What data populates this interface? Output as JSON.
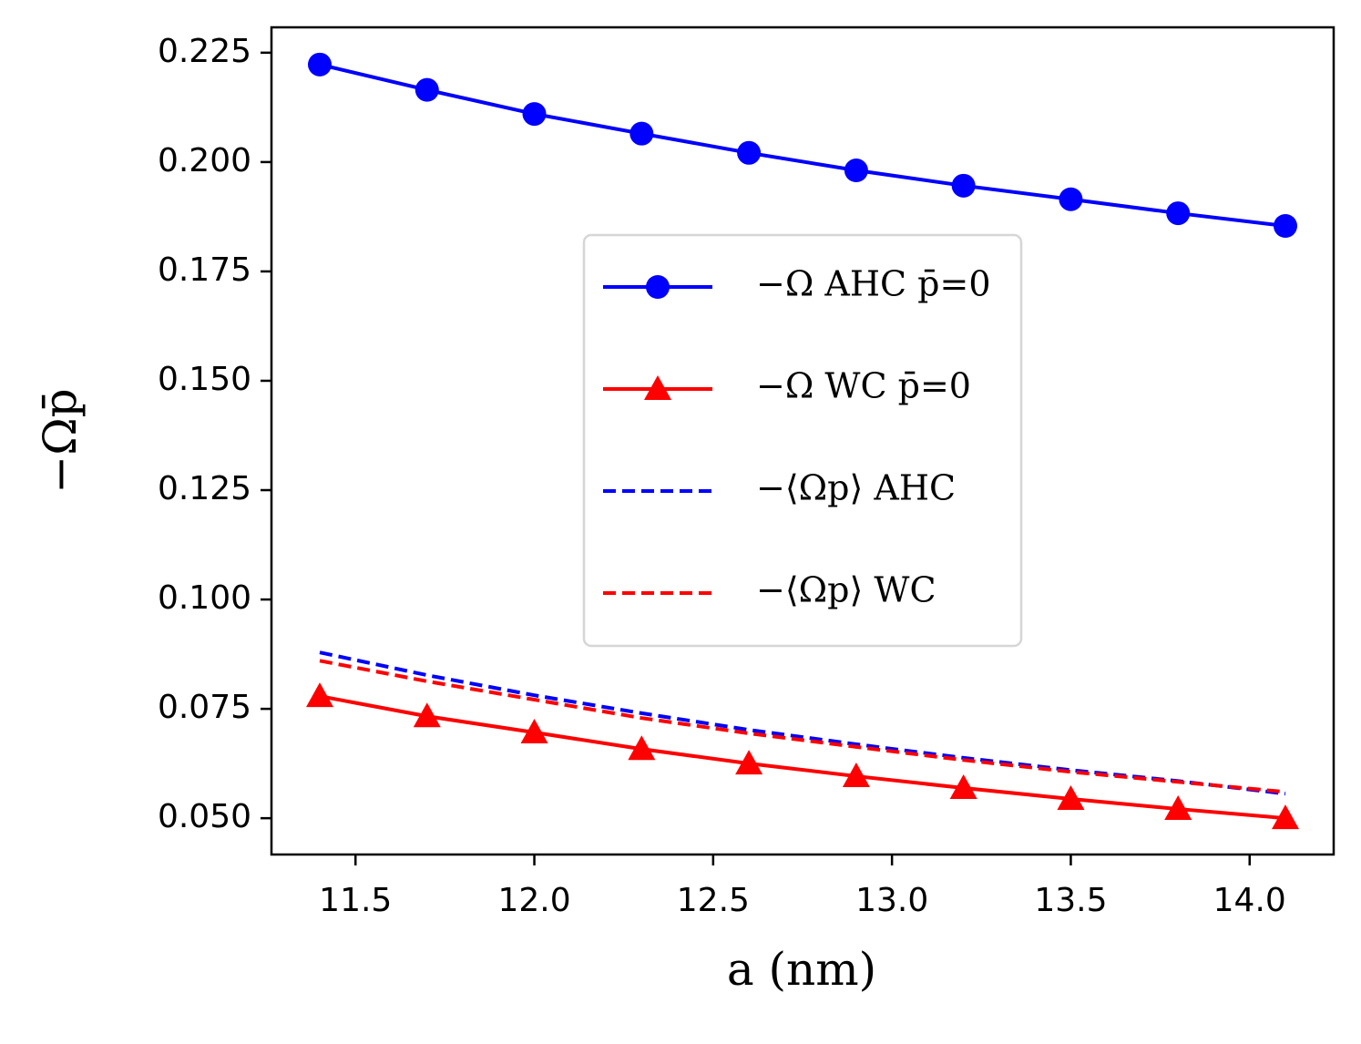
{
  "chart_data": {
    "type": "line",
    "x_label": "a (nm)",
    "y_label": "−Ωp̄",
    "x": [
      11.4,
      11.7,
      12.0,
      12.3,
      12.6,
      12.9,
      13.2,
      13.5,
      13.8,
      14.1
    ],
    "series": [
      {
        "name": "−Ω AHC p̄=0",
        "color": "#0000ff",
        "marker": "circle",
        "dash": false,
        "values": [
          0.2223,
          0.2165,
          0.211,
          0.2065,
          0.2021,
          0.1981,
          0.1946,
          0.1915,
          0.1883,
          0.1854
        ]
      },
      {
        "name": "−Ω WC p̄=0",
        "color": "#ff0000",
        "marker": "triangle",
        "dash": false,
        "values": [
          0.0779,
          0.0733,
          0.0696,
          0.0658,
          0.0625,
          0.0596,
          0.0569,
          0.0544,
          0.0521,
          0.05
        ]
      },
      {
        "name": "−⟨Ωp⟩ AHC",
        "color": "#0000ff",
        "marker": null,
        "dash": true,
        "values": [
          0.0879,
          0.0827,
          0.0781,
          0.074,
          0.0702,
          0.0669,
          0.0638,
          0.061,
          0.0585,
          0.0556
        ]
      },
      {
        "name": "−⟨Ωp⟩ WC",
        "color": "#ff0000",
        "marker": null,
        "dash": true,
        "values": [
          0.086,
          0.0813,
          0.0771,
          0.0729,
          0.0694,
          0.0663,
          0.0633,
          0.0606,
          0.0583,
          0.056
        ]
      }
    ],
    "xlim": [
      11.265,
      14.235
    ],
    "xticks": [
      {
        "value": 11.5,
        "label": "11.5"
      },
      {
        "value": 12.0,
        "label": "12.0"
      },
      {
        "value": 12.5,
        "label": "12.5"
      },
      {
        "value": 13.0,
        "label": "13.0"
      },
      {
        "value": 13.5,
        "label": "13.5"
      },
      {
        "value": 14.0,
        "label": "14.0"
      }
    ],
    "ylim": [
      0.0417,
      0.2308
    ],
    "yticks": [
      {
        "value": 0.05,
        "label": "0.050"
      },
      {
        "value": 0.075,
        "label": "0.075"
      },
      {
        "value": 0.1,
        "label": "0.100"
      },
      {
        "value": 0.125,
        "label": "0.125"
      },
      {
        "value": 0.15,
        "label": "0.150"
      },
      {
        "value": 0.175,
        "label": "0.175"
      },
      {
        "value": 0.2,
        "label": "0.200"
      },
      {
        "value": 0.225,
        "label": "0.225"
      }
    ],
    "legend": "center-right"
  }
}
